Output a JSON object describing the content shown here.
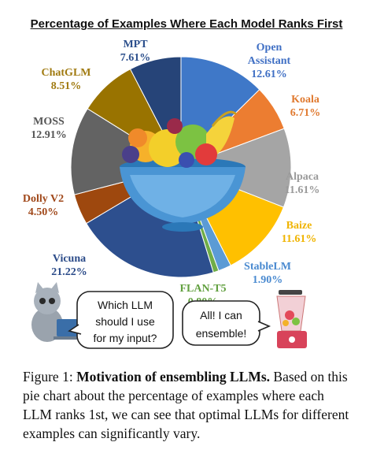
{
  "chart_data": {
    "type": "pie",
    "title": "Percentage of Examples Where Each Model Ranks First",
    "slices": [
      {
        "name": "Open Assistant",
        "value": 12.61,
        "label_line1": "Open",
        "label_line2": "Assistant",
        "pct": "12.61%",
        "color": "#3f78c8",
        "label_color": "#3f6fc4"
      },
      {
        "name": "Koala",
        "value": 6.71,
        "label_line1": "Koala",
        "label_line2": "",
        "pct": "6.71%",
        "color": "#ec7d31",
        "label_color": "#e07a30"
      },
      {
        "name": "Alpaca",
        "value": 11.61,
        "label_line1": "Alpaca",
        "label_line2": "",
        "pct": "11.61%",
        "color": "#a5a5a5",
        "label_color": "#9a9a9a"
      },
      {
        "name": "Baize",
        "value": 11.61,
        "label_line1": "Baize",
        "label_line2": "",
        "pct": "11.61%",
        "color": "#ffc000",
        "label_color": "#f0b400"
      },
      {
        "name": "StableLM",
        "value": 1.9,
        "label_line1": "StableLM",
        "label_line2": "",
        "pct": "1.90%",
        "color": "#5b9bd5",
        "label_color": "#4a8ad0"
      },
      {
        "name": "FLAN-T5",
        "value": 0.8,
        "label_line1": "FLAN-T5",
        "label_line2": "",
        "pct": "0.80%",
        "color": "#70ad47",
        "label_color": "#62a040"
      },
      {
        "name": "Vicuna",
        "value": 21.22,
        "label_line1": "Vicuna",
        "label_line2": "",
        "pct": "21.22%",
        "color": "#2d4f8e",
        "label_color": "#2a4a88"
      },
      {
        "name": "Dolly V2",
        "value": 4.5,
        "label_line1": "Dolly V2",
        "label_line2": "",
        "pct": "4.50%",
        "color": "#9e480e",
        "label_color": "#a0481a"
      },
      {
        "name": "MOSS",
        "value": 12.91,
        "label_line1": "MOSS",
        "label_line2": "",
        "pct": "12.91%",
        "color": "#636363",
        "label_color": "#555555"
      },
      {
        "name": "ChatGLM",
        "value": 8.51,
        "label_line1": "ChatGLM",
        "label_line2": "",
        "pct": "8.51%",
        "color": "#997300",
        "label_color": "#a07a10"
      },
      {
        "name": "MPT",
        "value": 7.61,
        "label_line1": "MPT",
        "label_line2": "",
        "pct": "7.61%",
        "color": "#264478",
        "label_color": "#2c4f8c"
      }
    ]
  },
  "bubbles": {
    "left": [
      "Which LLM",
      "should I use",
      "for my input?"
    ],
    "right": [
      "All! I can",
      "ensemble!"
    ]
  },
  "caption": {
    "prefix": "Figure 1: ",
    "bold": "Motivation of ensembling LLMs.",
    "rest": " Based on this pie chart about the percentage of examples where each LLM ranks 1st, we can see that optimal LLMs for different examples can significantly vary."
  }
}
